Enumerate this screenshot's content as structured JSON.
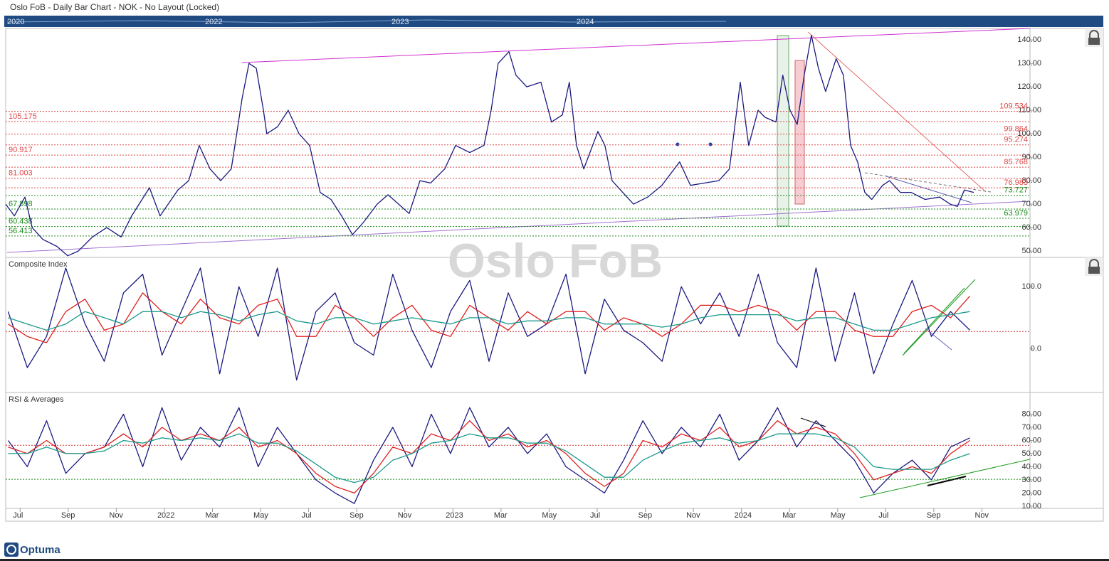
{
  "header": {
    "title": "Oslo FoB - Daily Bar Chart - NOK - No Layout (Locked)"
  },
  "navigator": {
    "labels": [
      "2020",
      "2022",
      "2023",
      "2024"
    ]
  },
  "footer": {
    "logo": "Optuma"
  },
  "chart_data": [
    {
      "type": "line",
      "watermark": "Oslo FoB",
      "xlim": [
        -0.6,
        42
      ],
      "ylim": [
        47.3,
        144.9
      ],
      "yticks": [
        {
          "value": 140,
          "label": "140.00"
        },
        {
          "value": 130,
          "label": "130.00"
        },
        {
          "value": 120,
          "label": "120.00"
        },
        {
          "value": 110,
          "label": "110.00"
        },
        {
          "value": 100,
          "label": "100.00"
        },
        {
          "value": 90,
          "label": "90.00"
        },
        {
          "value": 80,
          "label": "80.00"
        },
        {
          "value": 70,
          "label": "70.00"
        },
        {
          "value": 60,
          "label": "60.00"
        },
        {
          "value": 50,
          "label": "50.00"
        }
      ],
      "levels": [
        {
          "value": 109.534,
          "color": "#e04848",
          "side": "right"
        },
        {
          "value": 105.175,
          "color": "#e04848",
          "side": "left"
        },
        {
          "value": 99.864,
          "color": "#e04848",
          "side": "right"
        },
        {
          "value": 95.274,
          "color": "#e04848",
          "side": "right"
        },
        {
          "value": 90.917,
          "color": "#e04848",
          "side": "left"
        },
        {
          "value": 85.768,
          "color": "#e04848",
          "side": "right"
        },
        {
          "value": 81.003,
          "color": "#e04848",
          "side": "left"
        },
        {
          "value": 76.983,
          "color": "#e04848",
          "side": "right"
        },
        {
          "value": 73.727,
          "color": "#1a8a1a",
          "side": "right"
        },
        {
          "value": 67.898,
          "color": "#1a8a1a",
          "side": "left"
        },
        {
          "value": 63.979,
          "color": "#1a8a1a",
          "side": "right"
        },
        {
          "value": 60.438,
          "color": "#1a8a1a",
          "side": "left"
        },
        {
          "value": 56.413,
          "color": "#1a8a1a",
          "side": "left"
        }
      ],
      "x": [
        -0.6,
        -0.24,
        0.2,
        0.5,
        0.94,
        1.53,
        1.98,
        2.42,
        3.01,
        3.6,
        4.2,
        4.64,
        5.38,
        5.82,
        6.56,
        7.01,
        7.45,
        7.9,
        8.34,
        8.78,
        9.23,
        9.52,
        9.82,
        10.12,
        10.26,
        10.71,
        11.15,
        11.6,
        12.04,
        12.48,
        12.93,
        13.37,
        13.82,
        14.26,
        14.85,
        15.3,
        15.74,
        16.18,
        16.63,
        17.07,
        17.66,
        18.11,
        18.7,
        19.29,
        19.59,
        19.88,
        20.33,
        20.62,
        21.07,
        21.66,
        22.1,
        22.55,
        22.84,
        23.14,
        23.44,
        24.03,
        24.32,
        24.62,
        25.06,
        25.51,
        26.1,
        26.69,
        27.43,
        27.88,
        28.47,
        29.06,
        29.5,
        29.95,
        30.3,
        30.69,
        30.98,
        31.43,
        31.72,
        32.02,
        32.32,
        32.61,
        32.91,
        33.2,
        33.5,
        33.94,
        34.24,
        34.54,
        34.83,
        35.13,
        35.42,
        35.87,
        36.16,
        36.61,
        37.05,
        37.64,
        38.24,
        38.68,
        38.98,
        39.27,
        39.66
      ],
      "series": [
        {
          "color": "#1a1a80",
          "values": [
            70,
            65,
            73,
            60,
            55,
            52,
            48,
            50,
            56,
            60,
            56,
            65,
            77,
            65,
            76,
            80,
            95,
            85,
            80,
            85,
            115,
            130,
            128,
            110,
            100,
            103,
            110,
            100,
            95,
            75,
            72,
            65,
            57,
            62,
            70,
            74,
            70,
            66,
            80,
            79,
            85,
            95,
            92,
            95,
            110,
            130,
            135,
            125,
            120,
            122,
            105,
            108,
            122,
            95,
            85,
            101,
            95,
            80,
            75,
            70,
            73,
            78,
            88,
            78,
            79,
            80,
            85,
            122,
            95,
            110,
            107,
            105,
            125,
            110,
            104,
            125,
            142,
            128,
            118,
            132,
            125,
            95,
            88,
            75,
            72,
            78,
            80,
            75,
            75,
            72,
            73,
            70,
            69,
            76,
            75
          ]
        }
      ]
    },
    {
      "type": "line",
      "title": "Composite Index",
      "xlim": [
        -0.6,
        42
      ],
      "ylim": [
        -70,
        147
      ],
      "yticks": [
        {
          "value": 100,
          "label": "100.0"
        },
        {
          "value": 0,
          "label": "0.0"
        }
      ],
      "hlines": [
        {
          "value": 28,
          "color": "#d03030"
        }
      ],
      "x": [
        -0.5,
        0.3,
        1.1,
        1.9,
        2.7,
        3.5,
        4.3,
        5.1,
        5.9,
        6.7,
        7.5,
        8.3,
        9.1,
        9.9,
        10.7,
        11.5,
        12.3,
        13.1,
        13.9,
        14.7,
        15.5,
        16.3,
        17.1,
        17.9,
        18.7,
        19.5,
        20.3,
        21.1,
        21.9,
        22.7,
        23.5,
        24.3,
        25.1,
        25.9,
        26.7,
        27.5,
        28.3,
        29.1,
        29.9,
        30.7,
        31.5,
        32.3,
        33.1,
        33.9,
        34.7,
        35.5,
        36.3,
        37.1,
        37.9,
        38.7,
        39.5
      ],
      "series": [
        {
          "color": "#1a1a80",
          "values": [
            60,
            -30,
            20,
            130,
            40,
            -20,
            90,
            120,
            -10,
            60,
            130,
            -40,
            100,
            20,
            130,
            -50,
            60,
            90,
            10,
            -10,
            120,
            30,
            -30,
            60,
            110,
            -20,
            90,
            20,
            40,
            120,
            -40,
            80,
            30,
            10,
            -20,
            100,
            40,
            90,
            20,
            120,
            10,
            -30,
            130,
            -20,
            90,
            -40,
            40,
            110,
            20,
            60,
            30
          ]
        },
        {
          "color": "#e02020",
          "values": [
            40,
            20,
            10,
            60,
            80,
            30,
            40,
            90,
            60,
            40,
            80,
            50,
            40,
            70,
            80,
            20,
            20,
            70,
            50,
            20,
            50,
            70,
            30,
            20,
            70,
            50,
            30,
            60,
            40,
            60,
            60,
            30,
            50,
            40,
            20,
            40,
            70,
            70,
            60,
            70,
            60,
            30,
            60,
            60,
            30,
            20,
            20,
            60,
            70,
            50,
            85
          ]
        },
        {
          "color": "#1a9a8a",
          "values": [
            50,
            40,
            30,
            40,
            60,
            50,
            40,
            60,
            60,
            50,
            60,
            55,
            45,
            55,
            60,
            45,
            40,
            50,
            50,
            40,
            45,
            50,
            45,
            40,
            50,
            50,
            40,
            45,
            45,
            50,
            50,
            40,
            40,
            40,
            35,
            40,
            50,
            55,
            55,
            55,
            55,
            45,
            50,
            50,
            40,
            30,
            30,
            40,
            50,
            55,
            60
          ]
        }
      ]
    },
    {
      "type": "line",
      "title": "RSI & Averages",
      "xlim": [
        -0.6,
        42
      ],
      "ylim": [
        8.3,
        96.5
      ],
      "yticks": [
        {
          "value": 80,
          "label": "80.00"
        },
        {
          "value": 70,
          "label": "70.00"
        },
        {
          "value": 60,
          "label": "60.00"
        },
        {
          "value": 50,
          "label": "50.00"
        },
        {
          "value": 40,
          "label": "40.00"
        },
        {
          "value": 30,
          "label": "30.00"
        },
        {
          "value": 20,
          "label": "20.00"
        },
        {
          "value": 10,
          "label": "10.00"
        }
      ],
      "hlines": [
        {
          "value": 56.3,
          "color": "#d03030"
        },
        {
          "value": 30.4,
          "color": "#1a8a1a"
        }
      ],
      "xticks": [
        {
          "value": 0,
          "label": "Jul"
        },
        {
          "value": 2,
          "label": "Sep"
        },
        {
          "value": 4,
          "label": "Nov"
        },
        {
          "value": 6,
          "label": "2022"
        },
        {
          "value": 8,
          "label": "Mar"
        },
        {
          "value": 10,
          "label": "May"
        },
        {
          "value": 12,
          "label": "Jul"
        },
        {
          "value": 14,
          "label": "Sep"
        },
        {
          "value": 16,
          "label": "Nov"
        },
        {
          "value": 18,
          "label": "2023"
        },
        {
          "value": 20,
          "label": "Mar"
        },
        {
          "value": 22,
          "label": "May"
        },
        {
          "value": 24,
          "label": "Jul"
        },
        {
          "value": 26,
          "label": "Sep"
        },
        {
          "value": 28,
          "label": "Nov"
        },
        {
          "value": 30,
          "label": "2024"
        },
        {
          "value": 32,
          "label": "Mar"
        },
        {
          "value": 34,
          "label": "May"
        },
        {
          "value": 36,
          "label": "Jul"
        },
        {
          "value": 38,
          "label": "Sep"
        },
        {
          "value": 40,
          "label": "Nov"
        }
      ],
      "x": [
        -0.5,
        0.3,
        1.1,
        1.9,
        2.7,
        3.5,
        4.3,
        5.1,
        5.9,
        6.7,
        7.5,
        8.3,
        9.1,
        9.9,
        10.7,
        11.5,
        12.3,
        13.1,
        13.9,
        14.7,
        15.5,
        16.3,
        17.1,
        17.9,
        18.7,
        19.5,
        20.3,
        21.1,
        21.9,
        22.7,
        23.5,
        24.3,
        25.1,
        25.9,
        26.7,
        27.5,
        28.3,
        29.1,
        29.9,
        30.7,
        31.5,
        32.3,
        33.1,
        33.9,
        34.7,
        35.5,
        36.3,
        37.1,
        37.9,
        38.7,
        39.5
      ],
      "series": [
        {
          "color": "#1a1a80",
          "values": [
            60,
            40,
            75,
            35,
            50,
            55,
            80,
            40,
            85,
            45,
            70,
            55,
            85,
            40,
            70,
            50,
            30,
            20,
            12,
            45,
            70,
            40,
            80,
            50,
            85,
            55,
            70,
            50,
            65,
            40,
            30,
            20,
            45,
            75,
            50,
            70,
            55,
            80,
            45,
            60,
            85,
            55,
            75,
            60,
            45,
            20,
            35,
            45,
            30,
            55,
            62
          ]
        },
        {
          "color": "#e02020",
          "values": [
            55,
            50,
            60,
            50,
            50,
            55,
            65,
            55,
            70,
            60,
            65,
            60,
            70,
            55,
            60,
            50,
            35,
            25,
            20,
            35,
            55,
            50,
            65,
            60,
            75,
            60,
            65,
            55,
            60,
            50,
            35,
            25,
            35,
            60,
            55,
            65,
            60,
            70,
            55,
            60,
            75,
            65,
            70,
            65,
            50,
            30,
            35,
            40,
            35,
            50,
            60
          ]
        },
        {
          "color": "#1a9a8a",
          "values": [
            50,
            50,
            55,
            50,
            50,
            52,
            60,
            58,
            62,
            60,
            62,
            60,
            65,
            58,
            58,
            52,
            42,
            32,
            28,
            32,
            45,
            50,
            58,
            60,
            65,
            62,
            62,
            58,
            58,
            52,
            42,
            32,
            32,
            45,
            52,
            58,
            60,
            62,
            58,
            60,
            65,
            65,
            65,
            62,
            55,
            40,
            38,
            38,
            38,
            45,
            50
          ]
        }
      ]
    }
  ]
}
